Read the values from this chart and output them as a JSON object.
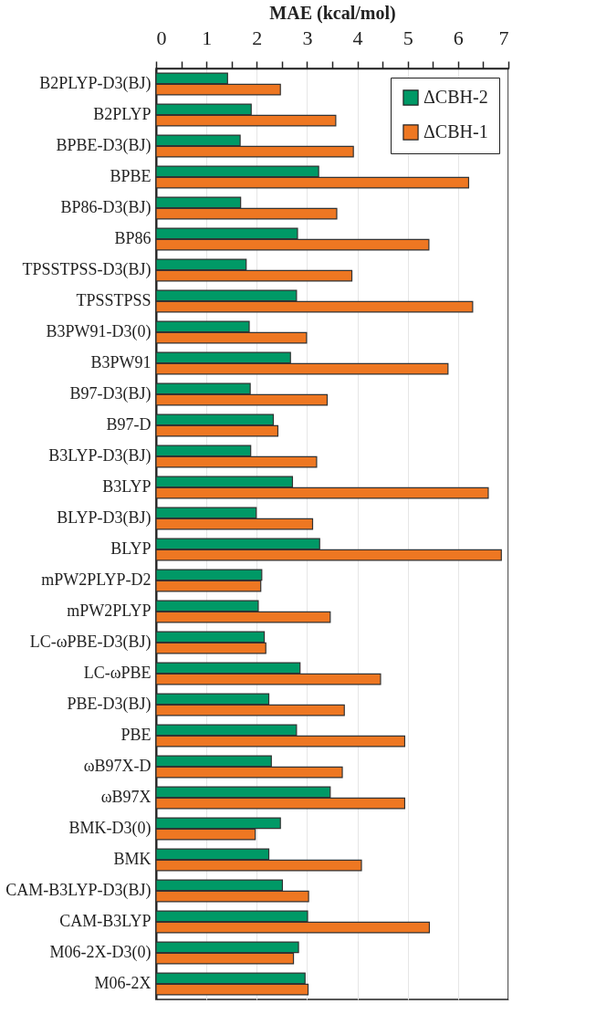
{
  "chart_data": {
    "type": "bar",
    "orientation": "horizontal",
    "xlabel": "MAE (kcal/mol)",
    "categories": [
      "B2PLYP-D3(BJ)",
      "B2PLYP",
      "BPBE-D3(BJ)",
      "BPBE",
      "BP86-D3(BJ)",
      "BP86",
      "TPSSTPSS-D3(BJ)",
      "TPSSTPSS",
      "B3PW91-D3(0)",
      "B3PW91",
      "B97-D3(BJ)",
      "B97-D",
      "B3LYP-D3(BJ)",
      "B3LYP",
      "BLYP-D3(BJ)",
      "BLYP",
      "mPW2PLYP-D2",
      "mPW2PLYP",
      "LC-ωPBE-D3(BJ)",
      "LC-ωPBE",
      "PBE-D3(BJ)",
      "PBE",
      "ωB97X-D",
      "ωB97X",
      "BMK-D3(0)",
      "BMK",
      "CAM-B3LYP-D3(BJ)",
      "CAM-B3LYP",
      "M06-2X-D3(0)",
      "M06-2X"
    ],
    "series": [
      {
        "name": "ΔCBH-2",
        "color": "#009966",
        "values": [
          1.42,
          1.89,
          1.67,
          3.23,
          1.68,
          2.81,
          1.79,
          2.79,
          1.85,
          2.67,
          1.87,
          2.33,
          1.88,
          2.71,
          1.99,
          3.25,
          2.1,
          2.03,
          2.15,
          2.86,
          2.24,
          2.79,
          2.29,
          3.46,
          2.47,
          2.24,
          2.51,
          3.01,
          2.83,
          2.96
        ]
      },
      {
        "name": "ΔCBH-1",
        "color": "#ee7722",
        "values": [
          2.47,
          3.57,
          3.92,
          6.21,
          3.59,
          5.42,
          3.89,
          6.29,
          2.99,
          5.8,
          3.4,
          2.42,
          3.19,
          6.6,
          3.11,
          6.86,
          2.08,
          3.46,
          2.18,
          4.46,
          3.74,
          4.94,
          3.7,
          4.94,
          1.97,
          4.08,
          3.03,
          5.43,
          2.73,
          3.02
        ]
      }
    ],
    "xlim": [
      0,
      7
    ],
    "xticks": [
      0,
      {
        "value": 0.5,
        "label": null
      },
      1,
      {
        "value": 1.5,
        "label": null
      },
      2,
      {
        "value": 2.5,
        "label": null
      },
      3,
      {
        "value": 3.5,
        "label": null
      },
      4,
      {
        "value": 4.5,
        "label": null
      },
      5,
      {
        "value": 5.5,
        "label": null
      },
      6,
      {
        "value": 6.5,
        "label": null
      },
      7
    ],
    "grid": "x",
    "legend": "top right"
  }
}
